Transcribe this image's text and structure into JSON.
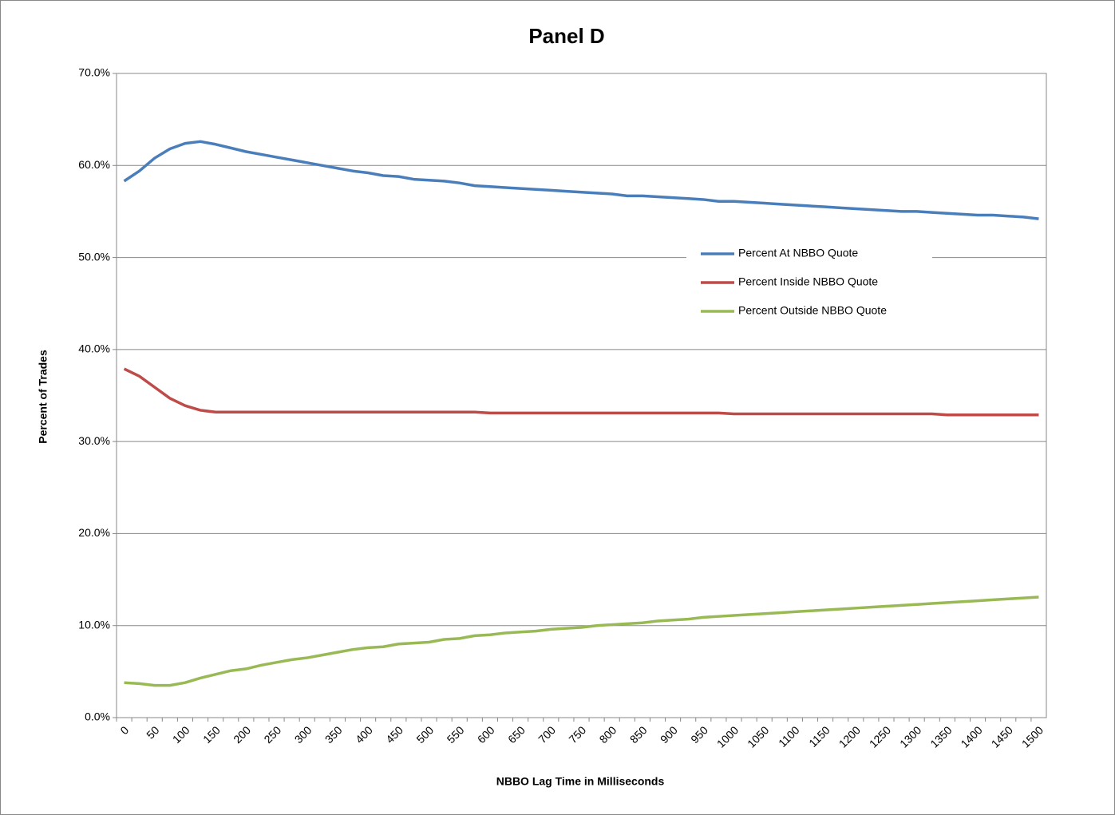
{
  "chart_data": {
    "type": "line",
    "title": "Panel D",
    "x_label": "NBBO Lag Time  in Milliseconds",
    "y_label": "Percent of Trades",
    "categories": [
      "0",
      null,
      "50",
      null,
      "100",
      null,
      "150",
      null,
      "200",
      null,
      "250",
      null,
      "300",
      null,
      "350",
      null,
      "400",
      null,
      "450",
      null,
      "500",
      null,
      "550",
      null,
      "600",
      null,
      "650",
      null,
      "700",
      null,
      "750",
      null,
      "800",
      null,
      "850",
      null,
      "900",
      null,
      "950",
      null,
      "1000",
      null,
      "1050",
      null,
      "1100",
      null,
      "1150",
      null,
      "1200",
      null,
      "1250",
      null,
      "1300",
      null,
      "1350",
      null,
      "1400",
      null,
      "1450",
      null,
      "1500"
    ],
    "series": [
      {
        "name": "Percent At NBBO Quote",
        "color": "#4a7ebb",
        "values": [
          58.3,
          59.4,
          60.8,
          61.8,
          62.4,
          62.6,
          62.3,
          61.9,
          61.5,
          61.2,
          60.9,
          60.6,
          60.3,
          60.0,
          59.7,
          59.4,
          59.2,
          58.9,
          58.8,
          58.5,
          58.4,
          58.3,
          58.1,
          57.8,
          57.7,
          57.6,
          57.5,
          57.4,
          57.3,
          57.2,
          57.1,
          57.0,
          56.9,
          56.7,
          56.7,
          56.6,
          56.5,
          56.4,
          56.3,
          56.1,
          56.1,
          56.0,
          55.9,
          55.8,
          55.7,
          55.6,
          55.5,
          55.4,
          55.3,
          55.2,
          55.1,
          55.0,
          55.0,
          54.9,
          54.8,
          54.7,
          54.6,
          54.6,
          54.5,
          54.4,
          54.2
        ]
      },
      {
        "name": "Percent Inside  NBBO Quote",
        "color": "#be4b48",
        "values": [
          37.9,
          37.1,
          35.9,
          34.7,
          33.9,
          33.4,
          33.2,
          33.2,
          33.2,
          33.2,
          33.2,
          33.2,
          33.2,
          33.2,
          33.2,
          33.2,
          33.2,
          33.2,
          33.2,
          33.2,
          33.2,
          33.2,
          33.2,
          33.2,
          33.1,
          33.1,
          33.1,
          33.1,
          33.1,
          33.1,
          33.1,
          33.1,
          33.1,
          33.1,
          33.1,
          33.1,
          33.1,
          33.1,
          33.1,
          33.1,
          33.0,
          33.0,
          33.0,
          33.0,
          33.0,
          33.0,
          33.0,
          33.0,
          33.0,
          33.0,
          33.0,
          33.0,
          33.0,
          33.0,
          32.9,
          32.9,
          32.9,
          32.9,
          32.9,
          32.9,
          32.9
        ]
      },
      {
        "name": "Percent Outside  NBBO Quote",
        "color": "#98b954",
        "values": [
          3.8,
          3.7,
          3.5,
          3.5,
          3.8,
          4.3,
          4.7,
          5.1,
          5.3,
          5.7,
          6.0,
          6.3,
          6.5,
          6.8,
          7.1,
          7.4,
          7.6,
          7.7,
          8.0,
          8.1,
          8.2,
          8.5,
          8.6,
          8.9,
          9.0,
          9.2,
          9.3,
          9.4,
          9.6,
          9.7,
          9.8,
          10.0,
          10.1,
          10.2,
          10.3,
          10.5,
          10.6,
          10.7,
          10.9,
          11.0,
          11.1,
          11.2,
          11.3,
          11.4,
          11.5,
          11.6,
          11.7,
          11.8,
          11.9,
          12.0,
          12.1,
          12.2,
          12.3,
          12.4,
          12.5,
          12.6,
          12.7,
          12.8,
          12.9,
          13.0,
          13.1
        ]
      }
    ],
    "ylim": [
      0,
      70
    ],
    "yticks": [
      {
        "value": 0,
        "label": "0.0%"
      },
      {
        "value": 10,
        "label": "10.0%"
      },
      {
        "value": 20,
        "label": "20.0%"
      },
      {
        "value": 30,
        "label": "30.0%"
      },
      {
        "value": 40,
        "label": "40.0%"
      },
      {
        "value": 50,
        "label": "50.0%"
      },
      {
        "value": 60,
        "label": "60.0%"
      },
      {
        "value": 70,
        "label": "70.0%"
      }
    ],
    "grid": true,
    "legend": "right"
  }
}
